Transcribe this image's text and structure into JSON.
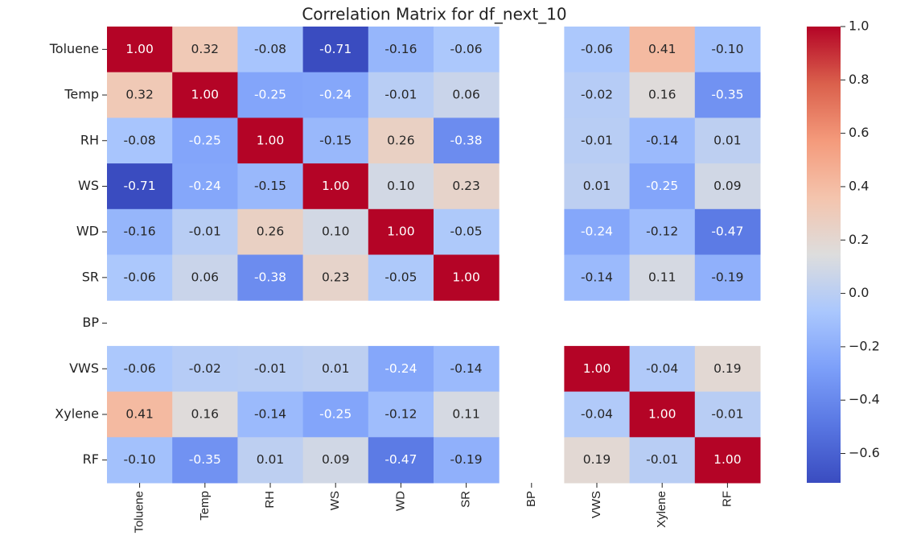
{
  "chart_data": {
    "type": "heatmap",
    "title": "Correlation Matrix for df_next_10",
    "x_categories": [
      "Toluene",
      "Temp",
      "RH",
      "WS",
      "WD",
      "SR",
      "BP",
      "VWS",
      "Xylene",
      "RF"
    ],
    "y_categories": [
      "Toluene",
      "Temp",
      "RH",
      "WS",
      "WD",
      "SR",
      "BP",
      "VWS",
      "Xylene",
      "RF"
    ],
    "values": [
      [
        1.0,
        0.32,
        -0.08,
        -0.71,
        -0.16,
        -0.06,
        null,
        -0.06,
        0.41,
        -0.1
      ],
      [
        0.32,
        1.0,
        -0.25,
        -0.24,
        -0.01,
        0.06,
        null,
        -0.02,
        0.16,
        -0.35
      ],
      [
        -0.08,
        -0.25,
        1.0,
        -0.15,
        0.26,
        -0.38,
        null,
        -0.01,
        -0.14,
        0.01
      ],
      [
        -0.71,
        -0.24,
        -0.15,
        1.0,
        0.1,
        0.23,
        null,
        0.01,
        -0.25,
        0.09
      ],
      [
        -0.16,
        -0.01,
        0.26,
        0.1,
        1.0,
        -0.05,
        null,
        -0.24,
        -0.12,
        -0.47
      ],
      [
        -0.06,
        0.06,
        -0.38,
        0.23,
        -0.05,
        1.0,
        null,
        -0.14,
        0.11,
        -0.19
      ],
      [
        null,
        null,
        null,
        null,
        null,
        null,
        null,
        null,
        null,
        null
      ],
      [
        -0.06,
        -0.02,
        -0.01,
        0.01,
        -0.24,
        -0.14,
        null,
        1.0,
        -0.04,
        0.19
      ],
      [
        0.41,
        0.16,
        -0.14,
        -0.25,
        -0.12,
        0.11,
        null,
        -0.04,
        1.0,
        -0.01
      ],
      [
        -0.1,
        -0.35,
        0.01,
        0.09,
        -0.47,
        -0.19,
        null,
        0.19,
        -0.01,
        1.0
      ]
    ],
    "value_labels": [
      [
        "1.00",
        "0.32",
        "-0.08",
        "-0.71",
        "-0.16",
        "-0.06",
        null,
        "-0.06",
        "0.41",
        "-0.10"
      ],
      [
        "0.32",
        "1.00",
        "-0.25",
        "-0.24",
        "-0.01",
        "0.06",
        null,
        "-0.02",
        "0.16",
        "-0.35"
      ],
      [
        "-0.08",
        "-0.25",
        "1.00",
        "-0.15",
        "0.26",
        "-0.38",
        null,
        "-0.01",
        "-0.14",
        "0.01"
      ],
      [
        "-0.71",
        "-0.24",
        "-0.15",
        "1.00",
        "0.10",
        "0.23",
        null,
        "0.01",
        "-0.25",
        "0.09"
      ],
      [
        "-0.16",
        "-0.01",
        "0.26",
        "0.10",
        "1.00",
        "-0.05",
        null,
        "-0.24",
        "-0.12",
        "-0.47"
      ],
      [
        "-0.06",
        "0.06",
        "-0.38",
        "0.23",
        "-0.05",
        "1.00",
        null,
        "-0.14",
        "0.11",
        "-0.19"
      ],
      [
        null,
        null,
        null,
        null,
        null,
        null,
        null,
        null,
        null,
        null
      ],
      [
        "-0.06",
        "-0.02",
        "-0.01",
        "0.01",
        "-0.24",
        "-0.14",
        null,
        "1.00",
        "-0.04",
        "0.19"
      ],
      [
        "0.41",
        "0.16",
        "-0.14",
        "-0.25",
        "-0.12",
        "0.11",
        null,
        "-0.04",
        "1.00",
        "-0.01"
      ],
      [
        "-0.10",
        "-0.35",
        "0.01",
        "0.09",
        "-0.47",
        "-0.19",
        null,
        "0.19",
        "-0.01",
        "1.00"
      ]
    ],
    "colormap": "coolwarm",
    "zlim": [
      -0.71,
      1.0
    ],
    "zticks": [
      {
        "value": 1.0,
        "label": "1.0"
      },
      {
        "value": 0.8,
        "label": "0.8"
      },
      {
        "value": 0.6,
        "label": "0.6"
      },
      {
        "value": 0.4,
        "label": "0.4"
      },
      {
        "value": 0.2,
        "label": "0.2"
      },
      {
        "value": 0.0,
        "label": "0.0"
      },
      {
        "value": -0.2,
        "label": "−0.2"
      },
      {
        "value": -0.4,
        "label": "−0.4"
      },
      {
        "value": -0.6,
        "label": "−0.6"
      }
    ]
  }
}
